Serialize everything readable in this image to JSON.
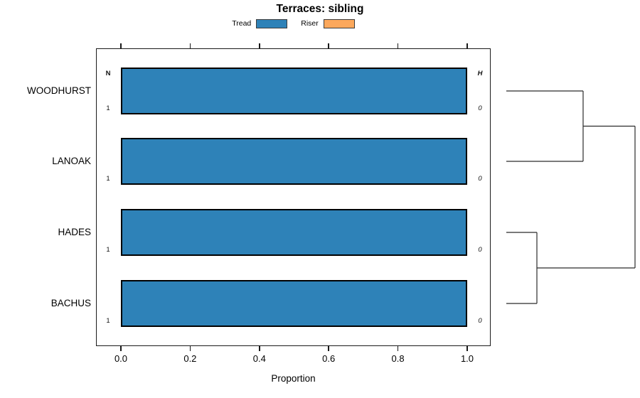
{
  "title": "Terraces: sibling",
  "legend": {
    "items": [
      {
        "label": "Tread",
        "color": "#2E82B8"
      },
      {
        "label": "Riser",
        "color": "#FCA85C"
      }
    ]
  },
  "chart_data": {
    "type": "bar",
    "orientation": "horizontal",
    "title": "Terraces: sibling",
    "xlabel": "Proportion",
    "xlim": [
      0,
      1
    ],
    "x_tick_labels": [
      "0.0",
      "0.2",
      "0.4",
      "0.6",
      "0.8",
      "1.0"
    ],
    "x_tick_values": [
      0.0,
      0.2,
      0.4,
      0.6,
      0.8,
      1.0
    ],
    "categories": [
      "WOODHURST",
      "LANOAK",
      "HADES",
      "BACHUS"
    ],
    "series": [
      {
        "name": "Tread",
        "color": "#2E82B8",
        "values": [
          1.0,
          1.0,
          1.0,
          1.0
        ]
      },
      {
        "name": "Riser",
        "color": "#FCA85C",
        "values": [
          0.0,
          0.0,
          0.0,
          0.0
        ]
      }
    ],
    "row_annotations": {
      "left_header": "N",
      "right_header": "H",
      "left_values": [
        "1",
        "1",
        "1",
        "1"
      ],
      "right_values": [
        "0",
        "0",
        "0",
        "0"
      ]
    },
    "legend_position": "top",
    "grid": false,
    "dendrogram": {
      "leaf_order": [
        "WOODHURST",
        "LANOAK",
        "HADES",
        "BACHUS"
      ],
      "clusters": [
        {
          "members": [
            "WOODHURST",
            "LANOAK"
          ],
          "merge_x": 820
        },
        {
          "members": [
            "HADES",
            "BACHUS"
          ],
          "merge_x": 755
        },
        {
          "members": [
            "all"
          ],
          "merge_x": 893
        }
      ],
      "segments": [
        [
          712,
          128,
          820,
          128
        ],
        [
          712,
          227,
          820,
          227
        ],
        [
          820,
          128,
          820,
          227
        ],
        [
          820,
          177.5,
          893,
          177.5
        ],
        [
          712,
          327,
          755,
          327
        ],
        [
          712,
          427,
          755,
          427
        ],
        [
          755,
          327,
          755,
          427
        ],
        [
          755,
          377,
          893,
          377
        ],
        [
          893,
          177.5,
          893,
          377
        ]
      ]
    }
  }
}
